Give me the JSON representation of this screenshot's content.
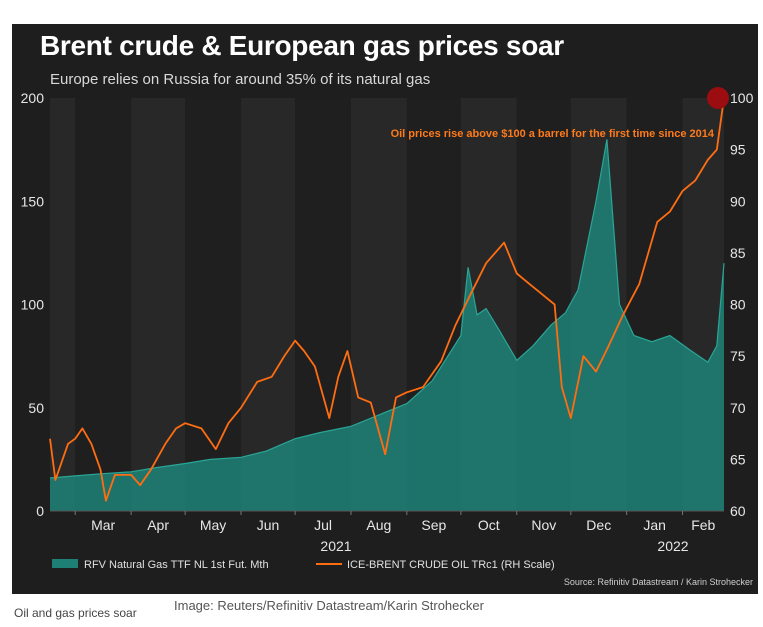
{
  "chart_data": {
    "type": "area",
    "title": "Brent crude & European gas prices soar",
    "subtitle": "Europe relies on Russia for around 35% of its natural gas",
    "annotation": "Oil prices rise above $100 a barrel for the first time since 2014",
    "source": "Source: Refinitiv Datastream / Karin Strohecker",
    "x_tick_labels": [
      "Mar",
      "Apr",
      "May",
      "Jun",
      "Jul",
      "Aug",
      "Sep",
      "Oct",
      "Nov",
      "Dec",
      "Jan",
      "Feb"
    ],
    "year_labels": [
      "2021",
      "2022"
    ],
    "y_left": {
      "ticks": [
        "0",
        "50",
        "100",
        "150",
        "200"
      ],
      "ylim": [
        0,
        200
      ]
    },
    "y_right": {
      "ticks": [
        "60",
        "65",
        "70",
        "75",
        "80",
        "85",
        "90",
        "95",
        "100"
      ],
      "ylim": [
        60,
        100
      ]
    },
    "legend_placement": "bottom",
    "grid": false,
    "x_range": [
      "2021-02-15",
      "2022-02-24"
    ],
    "series": [
      {
        "name": "RFV Natural Gas TTF NL 1st Fut. Mth",
        "axis": "left",
        "kind": "area",
        "color": "#1e7f75",
        "points": [
          [
            "2021-02-15",
            16
          ],
          [
            "2021-03-01",
            17
          ],
          [
            "2021-03-15",
            18
          ],
          [
            "2021-04-01",
            19
          ],
          [
            "2021-04-15",
            21
          ],
          [
            "2021-05-01",
            23
          ],
          [
            "2021-05-15",
            25
          ],
          [
            "2021-06-01",
            26
          ],
          [
            "2021-06-15",
            29
          ],
          [
            "2021-07-01",
            35
          ],
          [
            "2021-07-15",
            38
          ],
          [
            "2021-08-01",
            41
          ],
          [
            "2021-08-15",
            46
          ],
          [
            "2021-09-01",
            52
          ],
          [
            "2021-09-15",
            63
          ],
          [
            "2021-10-01",
            85
          ],
          [
            "2021-10-05",
            118
          ],
          [
            "2021-10-10",
            95
          ],
          [
            "2021-10-15",
            98
          ],
          [
            "2021-10-22",
            88
          ],
          [
            "2021-11-01",
            73
          ],
          [
            "2021-11-10",
            80
          ],
          [
            "2021-11-20",
            90
          ],
          [
            "2021-11-28",
            96
          ],
          [
            "2021-12-05",
            107
          ],
          [
            "2021-12-15",
            150
          ],
          [
            "2021-12-21",
            180
          ],
          [
            "2021-12-28",
            100
          ],
          [
            "2022-01-05",
            85
          ],
          [
            "2022-01-15",
            82
          ],
          [
            "2022-01-25",
            85
          ],
          [
            "2022-02-05",
            78
          ],
          [
            "2022-02-15",
            72
          ],
          [
            "2022-02-20",
            80
          ],
          [
            "2022-02-24",
            120
          ]
        ]
      },
      {
        "name": "ICE-BRENT CRUDE OIL TRc1 (RH Scale)",
        "axis": "right",
        "kind": "line",
        "color": "#ff6d12",
        "points": [
          [
            "2021-02-15",
            67
          ],
          [
            "2021-02-18",
            63
          ],
          [
            "2021-02-25",
            66.5
          ],
          [
            "2021-03-01",
            67
          ],
          [
            "2021-03-05",
            68
          ],
          [
            "2021-03-10",
            66.5
          ],
          [
            "2021-03-15",
            64
          ],
          [
            "2021-03-18",
            61
          ],
          [
            "2021-03-23",
            63.5
          ],
          [
            "2021-04-01",
            63.5
          ],
          [
            "2021-04-06",
            62.5
          ],
          [
            "2021-04-12",
            64
          ],
          [
            "2021-04-20",
            66.5
          ],
          [
            "2021-04-26",
            68
          ],
          [
            "2021-05-01",
            68.5
          ],
          [
            "2021-05-10",
            68
          ],
          [
            "2021-05-18",
            66
          ],
          [
            "2021-05-25",
            68.5
          ],
          [
            "2021-06-01",
            70
          ],
          [
            "2021-06-10",
            72.5
          ],
          [
            "2021-06-18",
            73
          ],
          [
            "2021-06-25",
            75
          ],
          [
            "2021-07-01",
            76.5
          ],
          [
            "2021-07-06",
            75.5
          ],
          [
            "2021-07-12",
            74
          ],
          [
            "2021-07-20",
            69
          ],
          [
            "2021-07-25",
            73
          ],
          [
            "2021-07-30",
            75.5
          ],
          [
            "2021-08-05",
            71
          ],
          [
            "2021-08-12",
            70.5
          ],
          [
            "2021-08-20",
            65.5
          ],
          [
            "2021-08-26",
            71
          ],
          [
            "2021-09-01",
            71.5
          ],
          [
            "2021-09-10",
            72
          ],
          [
            "2021-09-20",
            74.5
          ],
          [
            "2021-09-28",
            78
          ],
          [
            "2021-10-05",
            80.5
          ],
          [
            "2021-10-15",
            84
          ],
          [
            "2021-10-25",
            86
          ],
          [
            "2021-11-01",
            83
          ],
          [
            "2021-11-08",
            82
          ],
          [
            "2021-11-15",
            81
          ],
          [
            "2021-11-22",
            80
          ],
          [
            "2021-11-26",
            72
          ],
          [
            "2021-12-01",
            69
          ],
          [
            "2021-12-08",
            75
          ],
          [
            "2021-12-15",
            73.5
          ],
          [
            "2021-12-22",
            76
          ],
          [
            "2021-12-30",
            79
          ],
          [
            "2022-01-08",
            82
          ],
          [
            "2022-01-18",
            88
          ],
          [
            "2022-01-25",
            89
          ],
          [
            "2022-02-01",
            91
          ],
          [
            "2022-02-08",
            92
          ],
          [
            "2022-02-15",
            94
          ],
          [
            "2022-02-20",
            95
          ],
          [
            "2022-02-24",
            100
          ]
        ]
      }
    ]
  },
  "caption": "Oil and gas prices soar",
  "credit": "Image: Reuters/Refinitiv Datastream/Karin Strohecker"
}
